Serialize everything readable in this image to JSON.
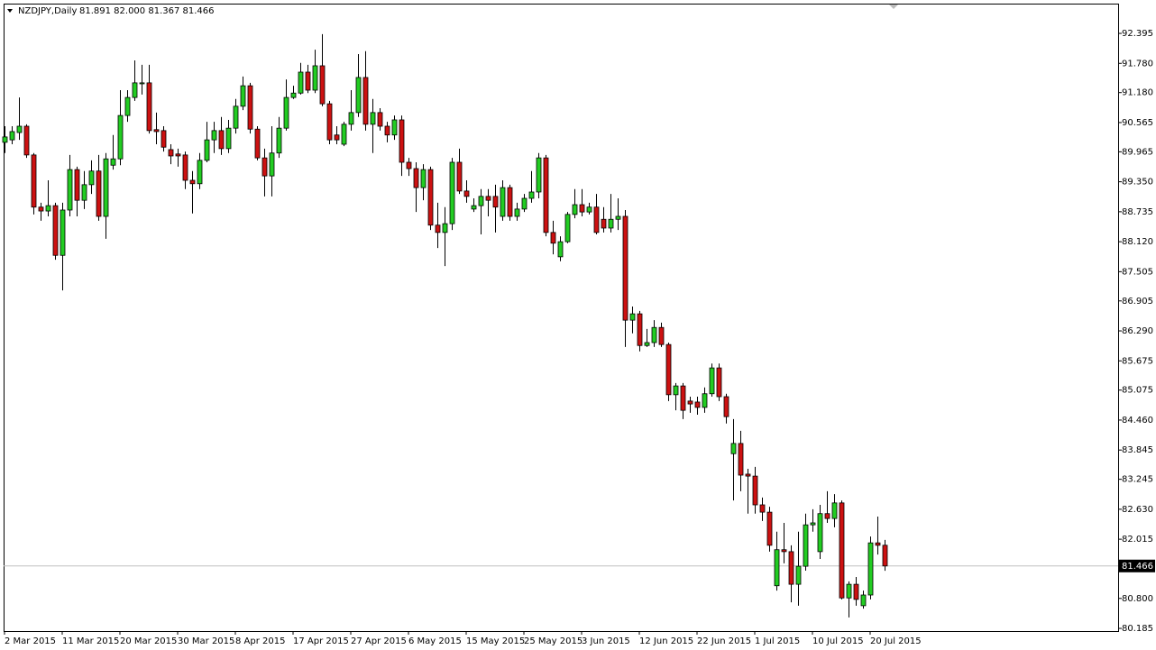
{
  "chart_data": {
    "type": "candlestick",
    "title": "NZDJPY,Daily",
    "subtitle": "81.891 82.000 81.367 81.466",
    "categories": [
      "2 Mar 2015",
      null,
      null,
      null,
      null,
      null,
      null,
      null,
      "11 Mar 2015",
      null,
      null,
      null,
      null,
      null,
      null,
      null,
      "20 Mar 2015",
      null,
      null,
      null,
      null,
      null,
      null,
      null,
      "30 Mar 2015",
      null,
      null,
      null,
      null,
      null,
      null,
      null,
      "8 Apr 2015",
      null,
      null,
      null,
      null,
      null,
      null,
      null,
      "17 Apr 2015",
      null,
      null,
      null,
      null,
      null,
      null,
      null,
      "27 Apr 2015",
      null,
      null,
      null,
      null,
      null,
      null,
      null,
      "6 May 2015",
      null,
      null,
      null,
      null,
      null,
      null,
      null,
      "15 May 2015",
      null,
      null,
      null,
      null,
      null,
      null,
      null,
      "25 May 2015",
      null,
      null,
      null,
      null,
      null,
      null,
      null,
      "3 Jun 2015",
      null,
      null,
      null,
      null,
      null,
      null,
      null,
      "12 Jun 2015",
      null,
      null,
      null,
      null,
      null,
      null,
      null,
      "22 Jun 2015",
      null,
      null,
      null,
      null,
      null,
      null,
      null,
      "1 Jul 2015",
      null,
      null,
      null,
      null,
      null,
      null,
      null,
      "10 Jul 2015",
      null,
      null,
      null,
      null,
      null,
      null,
      null,
      "20 Jul 2015",
      null,
      null
    ],
    "open": [
      90.16,
      90.21,
      90.36,
      90.49,
      89.9,
      88.83,
      88.75,
      88.86,
      87.84,
      88.77,
      89.6,
      88.97,
      89.29,
      89.57,
      88.64,
      89.69,
      89.82,
      90.71,
      91.08,
      91.36,
      91.38,
      90.42,
      90.4,
      90.01,
      89.92,
      89.9,
      89.38,
      89.31,
      89.79,
      90.21,
      90.4,
      90.03,
      90.45,
      90.9,
      91.32,
      90.43,
      89.84,
      89.47,
      89.94,
      90.45,
      91.08,
      91.17,
      91.6,
      91.23,
      91.73,
      90.95,
      90.31,
      90.12,
      90.53,
      90.77,
      91.49,
      90.53,
      90.77,
      90.49,
      90.31,
      90.62,
      89.75,
      89.62,
      89.23,
      89.6,
      88.46,
      88.31,
      88.49,
      89.75,
      89.16,
      88.79,
      88.86,
      89.05,
      89.05,
      88.64,
      89.23,
      88.64,
      88.79,
      89.01,
      89.14,
      89.84,
      88.31,
      87.81,
      88.12,
      88.68,
      88.88,
      88.73,
      88.83,
      88.58,
      88.4,
      88.58,
      88.64,
      86.51,
      86.64,
      85.99,
      86.05,
      86.36,
      86.01,
      84.98,
      85.16,
      84.85,
      84.83,
      84.72,
      85.0,
      85.53,
      84.94,
      83.77,
      83.98,
      83.35,
      83.31,
      82.72,
      82.57,
      81.06,
      81.8,
      81.76,
      81.09,
      81.46,
      82.31,
      81.76,
      82.54,
      82.44,
      82.76,
      80.81,
      81.09,
      80.65,
      80.87,
      81.94,
      81.891
    ],
    "high": [
      90.49,
      90.49,
      91.08,
      90.53,
      89.94,
      88.92,
      89.38,
      88.92,
      88.92,
      89.9,
      89.66,
      89.57,
      89.79,
      89.9,
      89.94,
      90.31,
      91.23,
      91.23,
      91.84,
      91.75,
      91.75,
      90.77,
      90.49,
      90.12,
      90.03,
      89.97,
      89.57,
      89.94,
      90.58,
      90.58,
      90.68,
      90.62,
      91.05,
      91.51,
      91.38,
      90.49,
      90.03,
      90.49,
      90.68,
      91.45,
      91.32,
      91.79,
      91.75,
      92.06,
      92.38,
      91.01,
      90.49,
      90.58,
      91.23,
      91.97,
      92.03,
      91.05,
      90.86,
      90.58,
      90.71,
      90.71,
      89.84,
      89.75,
      89.71,
      89.66,
      88.92,
      88.83,
      89.84,
      90.03,
      89.38,
      89.01,
      89.2,
      89.2,
      89.29,
      89.38,
      89.29,
      88.92,
      89.1,
      89.57,
      89.94,
      89.9,
      88.55,
      88.23,
      88.73,
      89.2,
      89.2,
      88.92,
      89.1,
      88.83,
      89.1,
      89.01,
      88.77,
      86.79,
      86.7,
      86.33,
      86.51,
      86.46,
      86.05,
      85.22,
      85.22,
      84.94,
      84.94,
      85.13,
      85.62,
      85.62,
      85.0,
      84.48,
      84.24,
      83.46,
      83.5,
      82.87,
      82.68,
      82.17,
      82.35,
      81.89,
      82.17,
      82.54,
      82.63,
      82.72,
      83.0,
      82.94,
      82.81,
      81.15,
      81.24,
      80.96,
      82.07,
      82.48,
      82.0
    ],
    "low": [
      89.94,
      90.12,
      90.21,
      89.84,
      88.68,
      88.55,
      88.64,
      87.75,
      87.12,
      88.64,
      88.64,
      88.79,
      89.1,
      88.55,
      88.18,
      89.6,
      89.69,
      90.58,
      91.01,
      91.14,
      90.34,
      90.12,
      89.97,
      89.71,
      89.66,
      89.2,
      88.7,
      89.2,
      89.75,
      89.94,
      89.9,
      89.94,
      90.34,
      90.82,
      90.34,
      89.79,
      89.05,
      89.05,
      89.84,
      90.4,
      91.05,
      91.14,
      91.17,
      91.17,
      90.9,
      90.12,
      90.12,
      90.08,
      90.4,
      90.68,
      90.4,
      89.94,
      90.4,
      90.16,
      90.21,
      89.47,
      89.47,
      88.73,
      88.97,
      88.36,
      87.99,
      87.62,
      88.36,
      89.1,
      88.92,
      88.73,
      88.27,
      88.64,
      88.31,
      88.55,
      88.55,
      88.55,
      88.73,
      88.92,
      89.01,
      88.23,
      87.86,
      87.72,
      88.09,
      88.6,
      88.64,
      88.68,
      88.27,
      88.31,
      88.31,
      88.36,
      85.96,
      86.24,
      85.87,
      85.96,
      85.96,
      85.96,
      84.85,
      84.66,
      84.48,
      84.61,
      84.57,
      84.61,
      84.94,
      84.85,
      84.39,
      82.81,
      83.0,
      82.54,
      82.54,
      82.39,
      81.76,
      80.96,
      81.52,
      80.72,
      80.65,
      81.37,
      82.17,
      81.61,
      82.35,
      82.26,
      80.78,
      80.41,
      80.65,
      80.59,
      80.78,
      81.7,
      81.367
    ],
    "close": [
      90.27,
      90.38,
      90.49,
      89.9,
      88.83,
      88.75,
      88.86,
      87.84,
      88.77,
      89.6,
      88.97,
      89.29,
      89.57,
      88.64,
      89.82,
      89.82,
      90.71,
      91.08,
      91.38,
      91.38,
      90.4,
      90.38,
      90.06,
      89.88,
      89.88,
      89.38,
      89.31,
      89.79,
      90.21,
      90.4,
      90.03,
      90.45,
      90.9,
      91.32,
      90.43,
      89.84,
      89.47,
      89.94,
      90.45,
      91.08,
      91.17,
      91.6,
      91.23,
      91.73,
      90.95,
      90.21,
      90.21,
      90.53,
      90.77,
      91.49,
      90.53,
      90.77,
      90.49,
      90.31,
      90.62,
      89.75,
      89.62,
      89.23,
      89.6,
      88.46,
      88.31,
      88.49,
      89.75,
      89.16,
      89.05,
      88.86,
      89.05,
      88.97,
      88.83,
      89.23,
      88.64,
      88.79,
      89.01,
      89.14,
      89.84,
      88.31,
      88.09,
      88.12,
      88.68,
      88.88,
      88.73,
      88.83,
      88.31,
      88.4,
      88.58,
      88.64,
      86.51,
      86.64,
      85.99,
      86.05,
      86.36,
      86.01,
      84.98,
      85.16,
      84.66,
      84.79,
      84.72,
      85.0,
      85.53,
      84.94,
      84.53,
      83.98,
      83.33,
      83.31,
      82.72,
      82.57,
      81.89,
      81.8,
      81.76,
      81.09,
      81.46,
      82.31,
      82.35,
      82.54,
      82.44,
      82.76,
      80.81,
      81.09,
      80.78,
      80.87,
      81.94,
      81.89,
      81.466
    ],
    "up_color": "#22cc22",
    "down_color": "#cc1111",
    "wick_color": "#000000",
    "current_price": 81.466,
    "ylim": [
      80.13,
      93.006
    ],
    "yticks": [
      92.395,
      {
        "value": 91.78,
        "label": "91.780"
      },
      {
        "value": 91.18,
        "label": "91.180"
      },
      90.565,
      89.965,
      {
        "value": 89.35,
        "label": "89.350"
      },
      88.735,
      {
        "value": 88.12,
        "label": "88.120"
      },
      87.505,
      86.905,
      {
        "value": 86.29,
        "label": "86.290"
      },
      85.675,
      85.075,
      {
        "value": 84.46,
        "label": "84.460"
      },
      83.845,
      83.245,
      {
        "value": 82.63,
        "label": "82.630"
      },
      82.015,
      {
        "value": 80.8,
        "label": "80.800"
      },
      80.185
    ]
  }
}
